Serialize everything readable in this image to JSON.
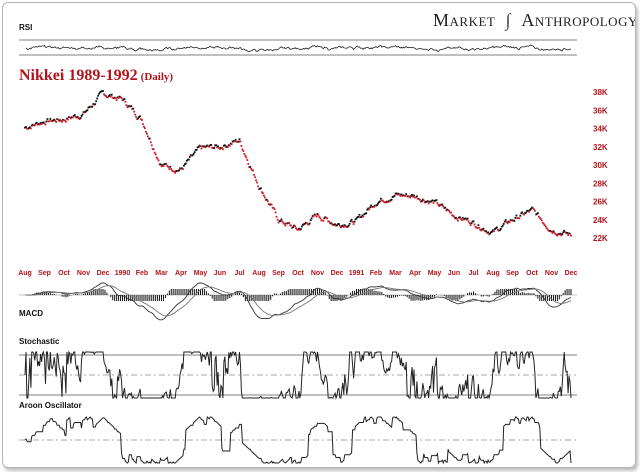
{
  "brand": {
    "word1": "Market",
    "word2": "Anthropology"
  },
  "chart_title": "Nikkei 1989-1992",
  "chart_subtitle": "(Daily)",
  "panels": {
    "rsi": "RSI",
    "macd": "MACD",
    "stochastic": "Stochastic",
    "aroon": "Aroon Oscillator"
  },
  "colors": {
    "up": "#111111",
    "down": "#d01c2a",
    "accent": "#b3141b",
    "grid": "#bbbbbb"
  },
  "chart_data": {
    "type": "scatter",
    "y_ticks": [
      "38K",
      "36K",
      "34K",
      "32K",
      "30K",
      "28K",
      "26K",
      "24K",
      "22K"
    ],
    "y_tick_values": [
      38000,
      36000,
      34000,
      32000,
      30000,
      28000,
      26000,
      24000,
      22000
    ],
    "ylim": [
      20000,
      38500
    ],
    "x_ticks": [
      "Aug",
      "Sep",
      "Oct",
      "Nov",
      "Dec",
      "1990",
      "Feb",
      "Mar",
      "Apr",
      "May",
      "Jun",
      "Jul",
      "Aug",
      "Sep",
      "Oct",
      "Nov",
      "Dec",
      "1991",
      "Feb",
      "Mar",
      "Apr",
      "May",
      "Jun",
      "Jul",
      "Aug",
      "Sep",
      "Oct",
      "Nov",
      "Dec"
    ],
    "price_monthly_approx": [
      {
        "m": "Aug",
        "v": 34100
      },
      {
        "m": "Sep",
        "v": 34800
      },
      {
        "m": "Oct",
        "v": 35000
      },
      {
        "m": "Nov",
        "v": 35600
      },
      {
        "m": "Dec",
        "v": 37800
      },
      {
        "m": "1990",
        "v": 37200
      },
      {
        "m": "Feb",
        "v": 35000
      },
      {
        "m": "Mar",
        "v": 30000
      },
      {
        "m": "Apr",
        "v": 29500
      },
      {
        "m": "May",
        "v": 31800
      },
      {
        "m": "Jun",
        "v": 32000
      },
      {
        "m": "Jul",
        "v": 32700
      },
      {
        "m": "Aug",
        "v": 27800
      },
      {
        "m": "Sep",
        "v": 24000
      },
      {
        "m": "Oct",
        "v": 22900
      },
      {
        "m": "Nov",
        "v": 24500
      },
      {
        "m": "Dec",
        "v": 23500
      },
      {
        "m": "1991",
        "v": 23800
      },
      {
        "m": "Feb",
        "v": 26000
      },
      {
        "m": "Mar",
        "v": 26700
      },
      {
        "m": "Apr",
        "v": 26600
      },
      {
        "m": "May",
        "v": 25900
      },
      {
        "m": "Jun",
        "v": 24500
      },
      {
        "m": "Jul",
        "v": 23700
      },
      {
        "m": "Aug",
        "v": 22600
      },
      {
        "m": "Sep",
        "v": 24000
      },
      {
        "m": "Oct",
        "v": 25000
      },
      {
        "m": "Nov",
        "v": 23000
      },
      {
        "m": "Dec",
        "v": 22300
      }
    ]
  }
}
